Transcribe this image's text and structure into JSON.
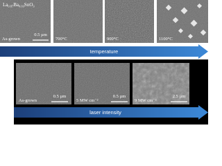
{
  "material": [
    "La",
    "0.87",
    "Ba",
    "0.03",
    "SnO",
    "3"
  ],
  "temperature_row": {
    "labels": [
      "As-grown",
      "700°C",
      "900°C",
      "1100°C"
    ],
    "scale_bar": "0.5 µm",
    "axis": "temperature"
  },
  "laser_row": {
    "labels": [
      "As-grown",
      "5 MW cm⁻²",
      "9 MW cm⁻²"
    ],
    "scale_bars": [
      "0.5 µm",
      "0.5 µm",
      "2.5 µm"
    ],
    "axis": "laser intensity"
  }
}
